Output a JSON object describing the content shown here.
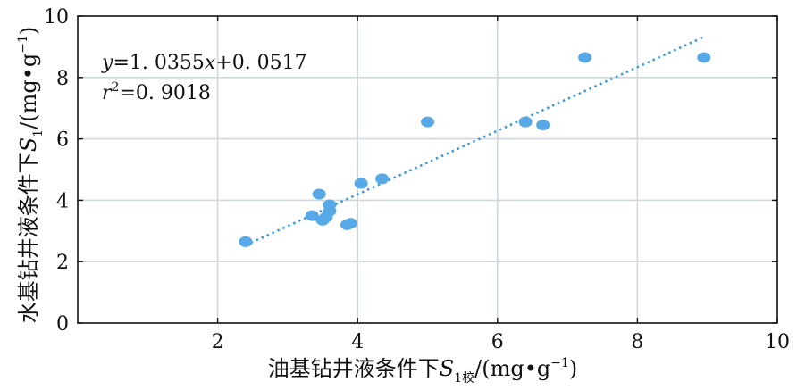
{
  "chart_data": {
    "type": "scatter",
    "xlim": [
      0,
      10
    ],
    "ylim": [
      0,
      10
    ],
    "x_ticks": [
      "2",
      "4",
      "6",
      "8",
      "10"
    ],
    "y_ticks": [
      "0",
      "2",
      "4",
      "6",
      "8",
      "10"
    ],
    "grid": true,
    "xlabel": {
      "prefix": "油基钻井液条件下",
      "var": "S",
      "sub": "1校",
      "suffix": "/(mg•g",
      "sup": "−1",
      "close": ")"
    },
    "ylabel": {
      "prefix": "水基钻井液条件下",
      "var": "S",
      "sub": "1",
      "suffix": "/(mg•g",
      "sup": "−1",
      "close": ")"
    },
    "annotation": {
      "eq_var_y": "y",
      "eq_mid": "=1. 0355",
      "eq_var_x": "x",
      "eq_tail": "+0. 0517",
      "r2_var": "r",
      "r2_sup": "2",
      "r2_tail": "=0. 9018"
    },
    "fit": {
      "slope": 1.0355,
      "intercept": 0.0517,
      "x_range": [
        2.4,
        8.95
      ]
    },
    "points": [
      {
        "x": 2.4,
        "y": 2.65
      },
      {
        "x": 3.35,
        "y": 3.5
      },
      {
        "x": 3.45,
        "y": 4.2
      },
      {
        "x": 3.5,
        "y": 3.35
      },
      {
        "x": 3.55,
        "y": 3.45
      },
      {
        "x": 3.6,
        "y": 3.65
      },
      {
        "x": 3.6,
        "y": 3.85
      },
      {
        "x": 3.85,
        "y": 3.2
      },
      {
        "x": 3.9,
        "y": 3.25
      },
      {
        "x": 4.05,
        "y": 4.55
      },
      {
        "x": 4.35,
        "y": 4.7
      },
      {
        "x": 5.0,
        "y": 6.55
      },
      {
        "x": 6.4,
        "y": 6.55
      },
      {
        "x": 6.65,
        "y": 6.45
      },
      {
        "x": 7.25,
        "y": 8.65
      },
      {
        "x": 8.95,
        "y": 8.65
      }
    ],
    "colors": {
      "points": "#56a9e6",
      "fit": "#3a9bdc",
      "grid": "#cfd8dc"
    }
  }
}
